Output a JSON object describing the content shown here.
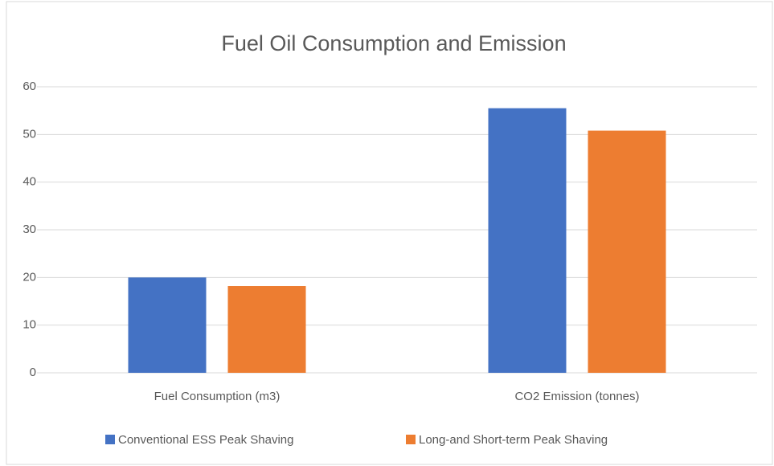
{
  "chart_data": {
    "type": "bar",
    "title": "Fuel Oil Consumption and Emission",
    "categories": [
      "Fuel Consumption (m3)",
      "CO2 Emission (tonnes)"
    ],
    "series": [
      {
        "name": "Conventional ESS Peak Shaving",
        "color": "#4472c4",
        "values": [
          20,
          55.5
        ]
      },
      {
        "name": "Long-and Short-term Peak Shaving",
        "color": "#ed7d31",
        "values": [
          18.2,
          50.8
        ]
      }
    ],
    "ylim": [
      0,
      60
    ],
    "yticks": [
      0,
      10,
      20,
      30,
      40,
      50,
      60
    ],
    "grid": true,
    "legend": "bottom"
  }
}
